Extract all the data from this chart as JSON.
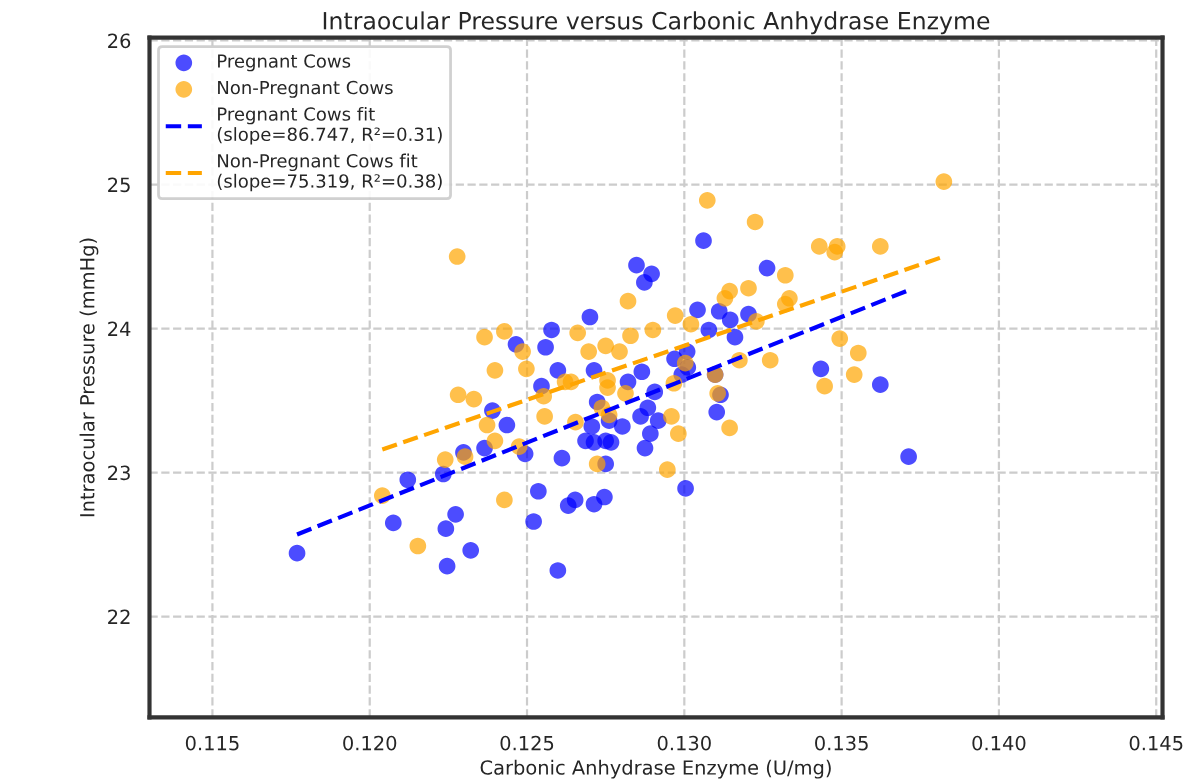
{
  "chart_data": {
    "type": "scatter",
    "title": "Intraocular Pressure versus Carbonic Anhydrase Enzyme",
    "xlabel": "Carbonic Anhydrase Enzyme (U/mg)",
    "ylabel": "Intraocular Pressure (mmHg)",
    "xlim": [
      0.113,
      0.1452
    ],
    "ylim": [
      21.3,
      26.02
    ],
    "xticks": [
      0.115,
      {
        "value": 0.12,
        "label": "0.120"
      },
      0.125,
      {
        "value": 0.13,
        "label": "0.130"
      },
      0.135,
      {
        "value": 0.14,
        "label": "0.140"
      },
      0.145
    ],
    "yticks": [
      22,
      23,
      24,
      25,
      26
    ],
    "grid": true,
    "legend": "top left",
    "series": [
      {
        "name": "Pregnant Cows",
        "marker": "circle",
        "color": "#0000ff",
        "x": [
          0.12848,
          0.12896,
          0.12873,
          0.13061,
          0.127,
          0.13042,
          0.13111,
          0.12578,
          0.12559,
          0.12465,
          0.12598,
          0.12713,
          0.12865,
          0.12969,
          0.13009,
          0.13078,
          0.12546,
          0.12821,
          0.12906,
          0.12992,
          0.13098,
          0.1239,
          0.12436,
          0.12723,
          0.12761,
          0.12706,
          0.12803,
          0.12861,
          0.12884,
          0.12892,
          0.12917,
          0.12875,
          0.12686,
          0.12713,
          0.1275,
          0.12767,
          0.12298,
          0.12365,
          0.12494,
          0.12234,
          0.12121,
          0.12611,
          0.1275,
          0.13004,
          0.12536,
          0.12631,
          0.12653,
          0.12713,
          0.12746,
          0.12075,
          0.12273,
          0.12242,
          0.12521,
          0.11769,
          0.12321,
          0.12246,
          0.12598,
          0.13263,
          0.13204,
          0.13146,
          0.13161,
          0.13434,
          0.13623,
          0.13011,
          0.13115,
          0.13103,
          0.13713
        ],
        "values": [
          24.44,
          24.38,
          24.32,
          24.61,
          24.08,
          24.13,
          24.12,
          23.99,
          23.87,
          23.89,
          23.71,
          23.71,
          23.7,
          23.79,
          23.84,
          23.99,
          23.6,
          23.63,
          23.56,
          23.68,
          23.68,
          23.43,
          23.33,
          23.49,
          23.36,
          23.32,
          23.32,
          23.39,
          23.45,
          23.27,
          23.36,
          23.17,
          23.22,
          23.21,
          23.22,
          23.21,
          23.14,
          23.17,
          23.13,
          22.99,
          22.95,
          23.1,
          23.06,
          22.89,
          22.87,
          22.77,
          22.81,
          22.78,
          22.83,
          22.65,
          22.71,
          22.61,
          22.66,
          22.44,
          22.46,
          22.35,
          22.32,
          24.42,
          24.1,
          24.06,
          23.94,
          23.72,
          23.61,
          23.73,
          23.54,
          23.42,
          23.11
        ]
      },
      {
        "name": "Non-Pregnant Cows",
        "marker": "circle",
        "color": "#ffa500",
        "x": [
          0.12278,
          0.13073,
          0.12821,
          0.129,
          0.13129,
          0.13144,
          0.12428,
          0.12365,
          0.12661,
          0.12829,
          0.12696,
          0.1275,
          0.12794,
          0.12486,
          0.12398,
          0.13021,
          0.13003,
          0.12621,
          0.1264,
          0.12756,
          0.12281,
          0.12498,
          0.12331,
          0.12553,
          0.12756,
          0.12373,
          0.12556,
          0.12738,
          0.12761,
          0.12654,
          0.12959,
          0.12981,
          0.12303,
          0.12398,
          0.12475,
          0.1224,
          0.12723,
          0.12946,
          0.1204,
          0.12428,
          0.12153,
          0.13825,
          0.13225,
          0.13429,
          0.13478,
          0.13486,
          0.13623,
          0.13321,
          0.13204,
          0.13334,
          0.13321,
          0.13229,
          0.12971,
          0.13494,
          0.13553,
          0.13273,
          0.13175,
          0.1354,
          0.13446,
          0.12813,
          0.12967,
          0.13098,
          0.13106,
          0.13144
        ],
        "values": [
          24.5,
          24.89,
          24.19,
          23.99,
          24.21,
          24.26,
          23.98,
          23.94,
          23.97,
          23.95,
          23.84,
          23.88,
          23.84,
          23.84,
          23.71,
          24.03,
          23.76,
          23.63,
          23.63,
          23.64,
          23.54,
          23.72,
          23.51,
          23.53,
          23.59,
          23.33,
          23.39,
          23.45,
          23.4,
          23.35,
          23.39,
          23.27,
          23.11,
          23.22,
          23.18,
          23.09,
          23.06,
          23.02,
          22.84,
          22.81,
          22.49,
          25.02,
          24.74,
          24.57,
          24.53,
          24.57,
          24.57,
          24.37,
          24.28,
          24.21,
          24.17,
          24.05,
          24.09,
          23.93,
          23.83,
          23.78,
          23.78,
          23.68,
          23.6,
          23.55,
          23.62,
          23.68,
          23.55,
          23.31
        ]
      },
      {
        "name": "Pregnant Cows fit\n(slope=86.747, R²=0.31)",
        "type": "line",
        "line_style": "dashed",
        "color": "#0000ff",
        "x": [
          0.11769,
          0.13706
        ],
        "values": [
          22.57,
          24.26
        ]
      },
      {
        "name": "Non-Pregnant Cows fit\n(slope=75.319, R²=0.38)",
        "type": "line",
        "line_style": "dashed",
        "color": "#ffa500",
        "x": [
          0.1204,
          0.13825
        ],
        "values": [
          23.16,
          24.5
        ]
      }
    ]
  }
}
